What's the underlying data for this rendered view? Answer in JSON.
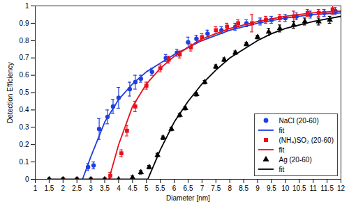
{
  "chart_data": {
    "type": "scatter",
    "xlabel": "Diameter [nm]",
    "ylabel": "Detection Efficiency",
    "xlim": [
      1,
      12
    ],
    "ylim": [
      0,
      1
    ],
    "xticks": [
      1,
      1.5,
      2,
      2.5,
      3,
      3.5,
      4,
      4.5,
      5,
      5.5,
      6,
      6.5,
      7,
      7.5,
      8,
      8.5,
      9,
      9.5,
      10,
      10.5,
      11,
      11.5,
      12
    ],
    "yticks": [
      0,
      0.1,
      0.2,
      0.3,
      0.4,
      0.5,
      0.6,
      0.7,
      0.8,
      0.9,
      1
    ],
    "grid": false,
    "legend": "lower right",
    "series": [
      {
        "name": "NaCl (20-60)",
        "type": "scatter",
        "marker": "circle",
        "color": "#1f3fe0",
        "x": [
          1.5,
          2,
          2.5,
          2.9,
          3.1,
          3.3,
          3.6,
          3.8,
          4.0,
          4.4,
          4.6,
          4.8,
          5.2,
          5.7,
          6.1,
          6.5,
          6.8,
          7.2,
          7.7,
          8.2,
          8.6,
          9.1,
          9.5,
          10.0,
          10.4,
          10.9,
          11.4,
          11.8
        ],
        "values": [
          0,
          0,
          0,
          0.07,
          0.08,
          0.29,
          0.36,
          0.42,
          0.47,
          0.52,
          0.56,
          0.58,
          0.62,
          0.7,
          0.73,
          0.79,
          0.81,
          0.84,
          0.86,
          0.88,
          0.9,
          0.91,
          0.92,
          0.93,
          0.94,
          0.95,
          0.96,
          0.97
        ],
        "errors": [
          0,
          0,
          0,
          0.02,
          0.02,
          0.06,
          0.04,
          0.04,
          0.06,
          0.04,
          0.04,
          0.02,
          0.02,
          0.02,
          0.02,
          0.03,
          0.02,
          0.02,
          0.02,
          0.02,
          0.02,
          0.02,
          0.02,
          0.02,
          0.02,
          0.02,
          0.02,
          0.02
        ]
      },
      {
        "name": "fit",
        "type": "line",
        "line_style": "solid",
        "color": "#1f3fe0",
        "x": [
          2.7,
          3,
          3.5,
          4,
          4.5,
          5,
          5.5,
          6,
          6.5,
          7,
          7.5,
          8,
          9,
          10,
          11,
          12
        ],
        "values": [
          0,
          0.13,
          0.33,
          0.46,
          0.55,
          0.62,
          0.67,
          0.72,
          0.76,
          0.8,
          0.83,
          0.86,
          0.9,
          0.93,
          0.95,
          0.96
        ]
      },
      {
        "name": "(NH₄)SO₂ (20-60)",
        "type": "scatter",
        "marker": "square",
        "color": "#e8101c",
        "x": [
          2,
          2.5,
          3,
          3.5,
          3.7,
          4.1,
          4.3,
          4.6,
          5.0,
          5.5,
          5.8,
          6.2,
          6.6,
          7.0,
          7.5,
          7.9,
          8.3,
          8.8,
          9.3,
          9.8,
          10.3,
          10.8,
          11.2,
          11.7
        ],
        "values": [
          0,
          0,
          0,
          0,
          0.02,
          0.15,
          0.28,
          0.42,
          0.54,
          0.64,
          0.69,
          0.72,
          0.76,
          0.82,
          0.86,
          0.88,
          0.9,
          0.9,
          0.92,
          0.93,
          0.94,
          0.96,
          0.96,
          0.98
        ],
        "errors": [
          0,
          0,
          0,
          0,
          0.02,
          0.02,
          0.03,
          0.03,
          0.02,
          0.02,
          0.02,
          0.02,
          0.02,
          0.02,
          0.02,
          0.02,
          0.02,
          0.05,
          0.02,
          0.02,
          0.03,
          0.02,
          0.02,
          0.03
        ]
      },
      {
        "name": "fit",
        "type": "line",
        "line_style": "solid",
        "color": "#e8101c",
        "x": [
          3.65,
          4,
          4.5,
          5,
          5.5,
          6,
          6.5,
          7,
          7.5,
          8,
          9,
          10,
          11,
          12
        ],
        "values": [
          0,
          0.2,
          0.42,
          0.55,
          0.64,
          0.71,
          0.76,
          0.81,
          0.84,
          0.87,
          0.91,
          0.94,
          0.96,
          0.97
        ]
      },
      {
        "name": "Ag (20-60)",
        "type": "scatter",
        "marker": "triangle",
        "color": "#000000",
        "x": [
          1.5,
          2,
          2.5,
          3,
          3.5,
          4,
          4.5,
          4.8,
          5.1,
          5.4,
          5.6,
          5.9,
          6.2,
          6.4,
          6.8,
          7.1,
          7.5,
          7.8,
          8.2,
          8.6,
          9.0,
          9.4,
          9.8,
          10.3,
          10.7,
          11.2,
          11.6
        ],
        "values": [
          0,
          0,
          0,
          0,
          0,
          0,
          0.01,
          0.04,
          0.07,
          0.14,
          0.24,
          0.29,
          0.37,
          0.41,
          0.49,
          0.56,
          0.65,
          0.69,
          0.73,
          0.78,
          0.82,
          0.85,
          0.87,
          0.89,
          0.91,
          0.91,
          0.92
        ],
        "errors": [
          0,
          0,
          0,
          0,
          0,
          0,
          0.01,
          0.01,
          0.01,
          0.01,
          0.01,
          0.01,
          0.01,
          0.01,
          0.01,
          0.01,
          0.01,
          0.01,
          0.01,
          0.01,
          0.01,
          0.02,
          0.02,
          0.02,
          0.02,
          0.02,
          0.02
        ]
      },
      {
        "name": "fit",
        "type": "line",
        "line_style": "solid",
        "color": "#000000",
        "x": [
          1.5,
          5.05,
          5.5,
          6,
          6.5,
          7,
          7.5,
          8,
          8.5,
          9,
          9.5,
          10,
          11,
          12
        ],
        "values": [
          0,
          0,
          0.17,
          0.33,
          0.45,
          0.55,
          0.63,
          0.7,
          0.75,
          0.8,
          0.84,
          0.87,
          0.91,
          0.94
        ]
      }
    ]
  }
}
